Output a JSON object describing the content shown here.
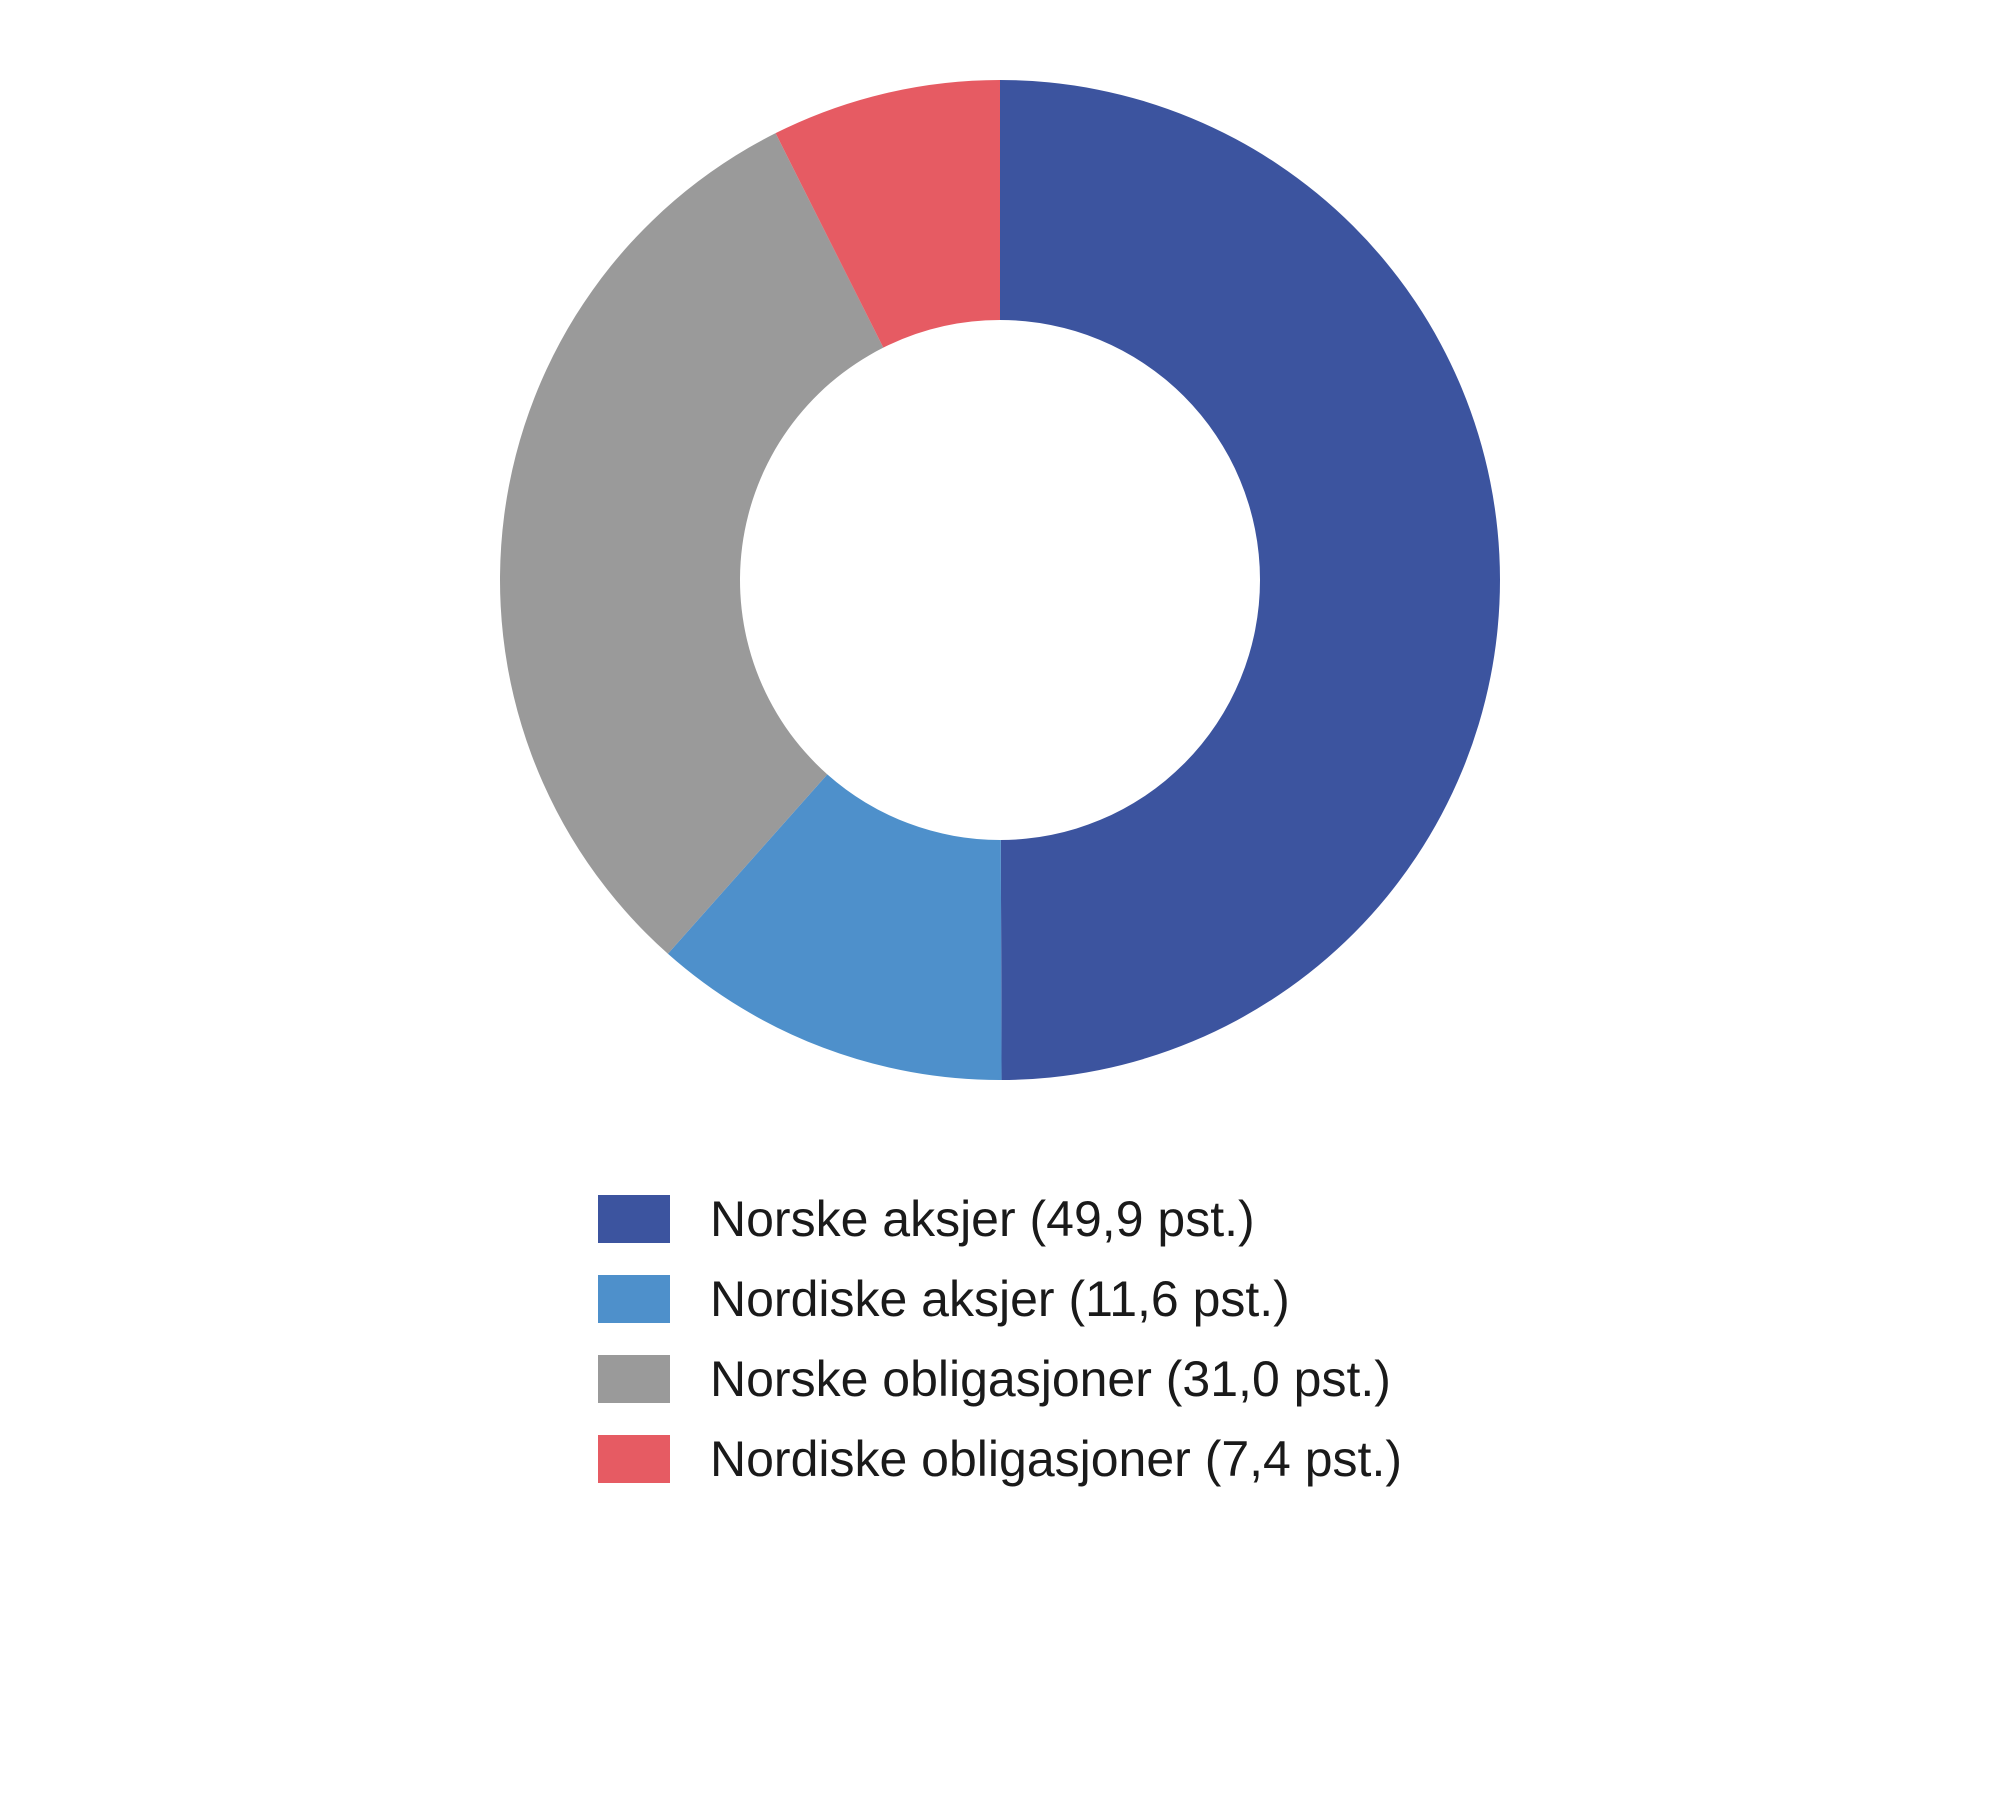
{
  "chart": {
    "type": "donut",
    "outer_radius": 500,
    "inner_radius_ratio": 0.52,
    "background_color": "#ffffff",
    "slices": [
      {
        "label": "Norske aksjer (49,9 pst.)",
        "value": 49.9,
        "color": "#3c549f"
      },
      {
        "label": "Nordiske aksjer (11,6 pst.)",
        "value": 11.6,
        "color": "#4e90cb"
      },
      {
        "label": "Norske obligasjoner (31,0 pst.)",
        "value": 31.0,
        "color": "#9a9a9a"
      },
      {
        "label": "Nordiske obligasjoner (7,4 pst.)",
        "value": 7.4,
        "color": "#e65b63"
      }
    ],
    "legend": {
      "label_fontsize": 50,
      "label_color": "#1a1a1a",
      "swatch_width": 72,
      "swatch_height": 48
    }
  }
}
